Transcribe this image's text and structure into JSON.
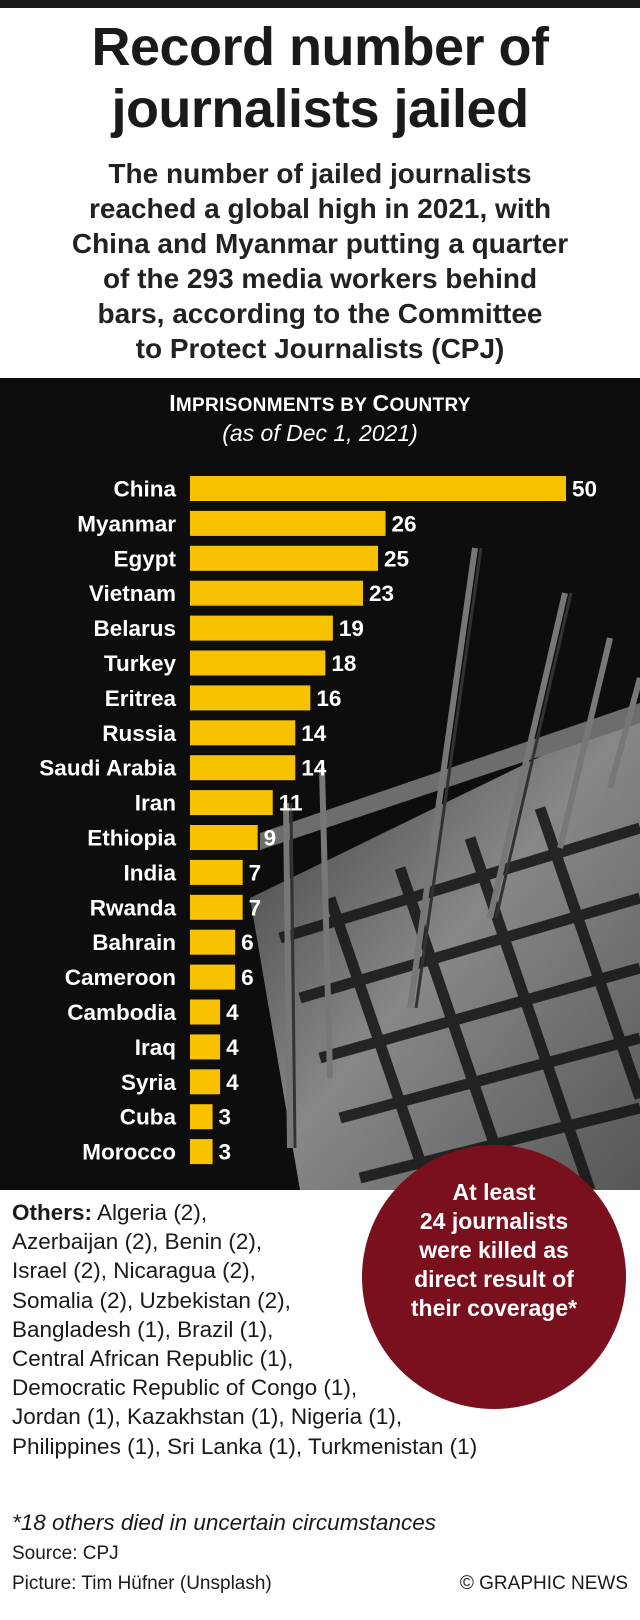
{
  "header": {
    "title_line1": "Record number of",
    "title_line2": "journalists jailed",
    "subtitle_lines": [
      "The number of jailed journalists",
      "reached a global high in 2021, with",
      "China and Myanmar putting a quarter",
      "of the 293 media workers behind",
      "bars, according to the Committee",
      "to Protect Journalists (CPJ)"
    ]
  },
  "chart_heading": {
    "cap1": "I",
    "rest1": "MPRISONMENTS BY ",
    "cap2": "C",
    "rest2": "OUNTRY",
    "subheading": "(as of Dec 1, 2021)"
  },
  "chart_data": {
    "type": "bar",
    "orientation": "horizontal",
    "title": "Imprisonments by Country",
    "categories": [
      "China",
      "Myanmar",
      "Egypt",
      "Vietnam",
      "Belarus",
      "Turkey",
      "Eritrea",
      "Russia",
      "Saudi Arabia",
      "Iran",
      "Ethiopia",
      "India",
      "Rwanda",
      "Bahrain",
      "Cameroon",
      "Cambodia",
      "Iraq",
      "Syria",
      "Cuba",
      "Morocco"
    ],
    "values": [
      50,
      26,
      25,
      23,
      19,
      18,
      16,
      14,
      14,
      11,
      9,
      7,
      7,
      6,
      6,
      4,
      4,
      4,
      3,
      3
    ],
    "bar_color": "#f9c200",
    "label_color": "#ffffff"
  },
  "callout": {
    "lines": [
      "At least",
      "24 journalists",
      "were killed as",
      "direct result of",
      "their coverage*"
    ],
    "color": "#7a0f1e"
  },
  "others": {
    "label": "Others:",
    "first_line_rest": " Algeria (2),",
    "lines": [
      "Azerbaijan (2), Benin (2),",
      "Israel (2), Nicaragua (2),",
      "Somalia (2),  Uzbekistan (2),",
      "Bangladesh (1), Brazil (1),",
      "Central African Republic (1),",
      "Democratic Republic of Congo (1),",
      "Jordan (1), Kazakhstan (1), Nigeria (1),",
      "Philippines (1), Sri Lanka (1), Turkmenistan (1)"
    ]
  },
  "footer": {
    "footnote": "*18 others died in uncertain circumstances",
    "source": "Source: CPJ",
    "credit": "Picture: Tim Hüfner (Unsplash)",
    "copyright": "© GRAPHIC NEWS"
  }
}
